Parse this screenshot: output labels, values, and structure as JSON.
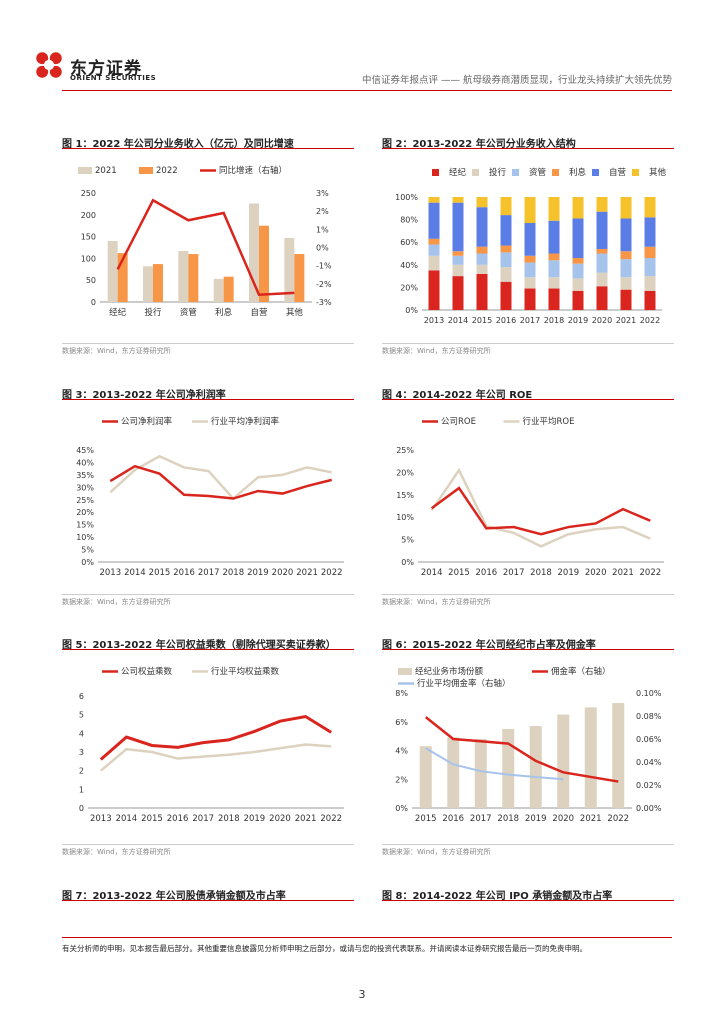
{
  "header": {
    "company_cn": "东方证券",
    "company_en": "ORIENT SECURITIES",
    "title": "中信证券年报点评 —— 航母级券商潜质显现，行业龙头持续扩大领先优势"
  },
  "colors": {
    "red": "#d9251d",
    "beige": "#ddd2bf",
    "orange": "#f79646",
    "blue": "#5b7ee6",
    "gray": "#a6a6a6",
    "yellow": "#f5c22b",
    "lightblue": "#a6c3ec"
  },
  "source": "数据来源：Wind，东方证券研究所",
  "fig1": {
    "title": "图 1：2022 年公司分业务收入（亿元）及同比增速",
    "chart_data": {
      "type": "bar",
      "categories": [
        "经纪",
        "投行",
        "资管",
        "利息",
        "自营",
        "其他"
      ],
      "series": [
        {
          "name": "2021",
          "values": [
            140,
            82,
            117,
            53,
            226,
            147
          ]
        },
        {
          "name": "2022",
          "values": [
            112,
            87,
            110,
            58,
            175,
            110
          ]
        }
      ],
      "line": {
        "name": "同比增速（右轴）",
        "values": [
          -1.2,
          2.6,
          1.5,
          1.9,
          -2.6,
          -2.5
        ]
      },
      "ylim": [
        0,
        250
      ],
      "yticks": [
        "0",
        "50",
        "100",
        "150",
        "200",
        "250"
      ],
      "y2lim": [
        -3,
        3
      ],
      "y2ticks": [
        "-3%",
        "-2%",
        "-1%",
        "0%",
        "1%",
        "2%",
        "3%"
      ]
    }
  },
  "fig2": {
    "title": "图 2：2013-2022 年公司分业务收入结构",
    "chart_data": {
      "type": "bar",
      "stacked": true,
      "categories": [
        "2013",
        "2014",
        "2015",
        "2016",
        "2017",
        "2018",
        "2019",
        "2020",
        "2021",
        "2022"
      ],
      "series": [
        {
          "name": "经纪",
          "values": [
            35,
            30,
            32,
            25,
            19,
            19,
            17,
            21,
            18,
            17
          ]
        },
        {
          "name": "投行",
          "values": [
            13,
            10,
            8,
            13,
            10,
            10,
            11,
            12,
            11,
            13
          ]
        },
        {
          "name": "资管",
          "values": [
            10,
            8,
            10,
            13,
            13,
            15,
            13,
            17,
            16,
            16
          ]
        },
        {
          "name": "利息",
          "values": [
            5,
            4,
            6,
            6,
            6,
            6,
            5,
            4,
            7,
            10
          ]
        },
        {
          "name": "自营",
          "values": [
            32,
            43,
            35,
            27,
            29,
            29,
            35,
            33,
            29,
            26
          ]
        },
        {
          "name": "其他",
          "values": [
            5,
            5,
            9,
            16,
            23,
            21,
            19,
            13,
            19,
            18
          ]
        }
      ],
      "yticks": [
        "0%",
        "20%",
        "40%",
        "60%",
        "80%",
        "100%"
      ]
    }
  },
  "fig3": {
    "title": "图 3：2013-2022 年公司净利润率",
    "chart_data": {
      "type": "line",
      "categories": [
        "2013",
        "2014",
        "2015",
        "2016",
        "2017",
        "2018",
        "2019",
        "2020",
        "2021",
        "2022"
      ],
      "series": [
        {
          "name": "公司净利润率",
          "values": [
            32.5,
            38.5,
            35.5,
            27,
            26.5,
            25.5,
            28.5,
            27.5,
            30.5,
            33
          ]
        },
        {
          "name": "行业平均净利润率",
          "values": [
            28,
            37,
            42.5,
            38,
            36.5,
            25.5,
            34,
            35,
            38,
            36
          ]
        }
      ],
      "ylim": [
        0,
        45
      ],
      "yticks": [
        "0%",
        "5%",
        "10%",
        "15%",
        "20%",
        "25%",
        "30%",
        "35%",
        "40%",
        "45%"
      ]
    }
  },
  "fig4": {
    "title": "图 4：2014-2022 年公司 ROE",
    "chart_data": {
      "type": "line",
      "categories": [
        "2014",
        "2015",
        "2016",
        "2017",
        "2018",
        "2019",
        "2020",
        "2021",
        "2022"
      ],
      "series": [
        {
          "name": "公司ROE",
          "values": [
            12,
            16.5,
            7.5,
            7.8,
            6.2,
            7.8,
            8.6,
            11.8,
            9.2
          ]
        },
        {
          "name": "行业平均ROE",
          "values": [
            11.5,
            20.5,
            8,
            6.5,
            3.5,
            6.2,
            7.3,
            7.8,
            5.2
          ]
        }
      ],
      "ylim": [
        0,
        25
      ],
      "yticks": [
        "0%",
        "5%",
        "10%",
        "15%",
        "20%",
        "25%"
      ]
    }
  },
  "fig5": {
    "title": "图 5：2013-2022 年公司权益乘数（剔除代理买卖证券款）",
    "chart_data": {
      "type": "line",
      "categories": [
        "2013",
        "2014",
        "2015",
        "2016",
        "2017",
        "2018",
        "2019",
        "2020",
        "2021",
        "2022"
      ],
      "series": [
        {
          "name": "公司权益乘数",
          "values": [
            2.6,
            3.8,
            3.35,
            3.25,
            3.5,
            3.65,
            4.1,
            4.65,
            4.9,
            4.05
          ]
        },
        {
          "name": "行业平均权益乘数",
          "values": [
            2.0,
            3.15,
            3.0,
            2.65,
            2.75,
            2.85,
            3.0,
            3.2,
            3.4,
            3.3
          ]
        }
      ],
      "ylim": [
        0,
        6
      ],
      "yticks": [
        "0",
        "1",
        "2",
        "3",
        "4",
        "5",
        "6"
      ]
    }
  },
  "fig6": {
    "title": "图 6：2015-2022 年公司经纪市占率及佣金率",
    "chart_data": {
      "type": "bar",
      "categories": [
        "2015",
        "2016",
        "2017",
        "2018",
        "2019",
        "2020",
        "2021",
        "2022"
      ],
      "bars": {
        "name": "经纪业务市场份额",
        "values": [
          4.3,
          4.9,
          4.8,
          5.5,
          5.7,
          6.5,
          7.0,
          7.3
        ]
      },
      "lines": [
        {
          "name": "佣金率（右轴）",
          "values": [
            0.079,
            0.06,
            0.058,
            0.056,
            0.041,
            0.031,
            0.027,
            0.023
          ]
        },
        {
          "name": "行业平均佣金率（右轴）",
          "values": [
            0.052,
            0.038,
            0.032,
            0.029,
            0.027,
            0.025,
            null,
            null
          ]
        }
      ],
      "ylim": [
        0,
        8
      ],
      "yticks": [
        "0%",
        "2%",
        "4%",
        "6%",
        "8%"
      ],
      "y2lim": [
        0,
        0.1
      ],
      "y2ticks": [
        "0.00%",
        "0.02%",
        "0.04%",
        "0.06%",
        "0.08%",
        "0.10%"
      ]
    }
  },
  "fig7": {
    "title": "图 7：2013-2022 年公司股债承销金额及市占率"
  },
  "fig8": {
    "title": "图 8：2014-2022 年公司 IPO 承销金额及市占率"
  },
  "footer": {
    "disclaimer": "有关分析师的申明，见本报告最后部分。其他重要信息披露见分析师申明之后部分，或请与您的投资代表联系。并请阅读本证券研究报告最后一页的免责申明。",
    "page": "3"
  }
}
